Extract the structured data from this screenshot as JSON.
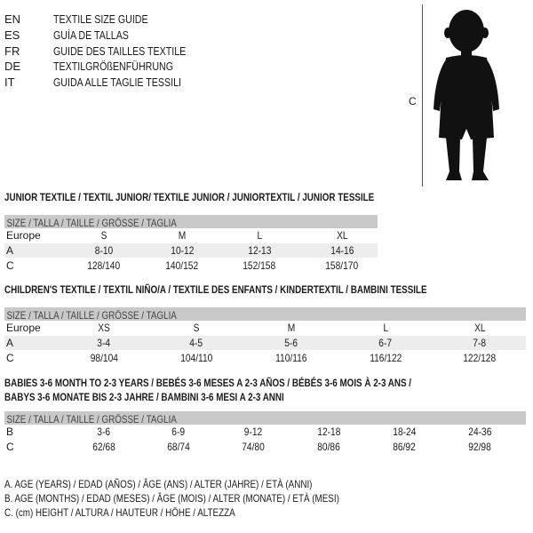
{
  "languages": [
    {
      "code": "EN",
      "text": "TEXTILE SIZE GUIDE"
    },
    {
      "code": "ES",
      "text": "GUÍA DE TALLAS"
    },
    {
      "code": "FR",
      "text": "GUIDE DES TAILLES TEXTILE"
    },
    {
      "code": "DE",
      "text": "TEXTILGRÖßENFÜHRUNG"
    },
    {
      "code": "IT",
      "text": "GUIDA ALLE TAGLIE TESSILI"
    }
  ],
  "figure": {
    "measure_label": "C",
    "icon": "child-silhouette"
  },
  "header_label": "SIZE / TALLA / TAILLE / GRÖSSE / TAGLIA",
  "junior": {
    "title": "JUNIOR TEXTILE / TEXTIL JUNIOR/ TEXTILE JUNIOR / JUNIORTEXTIL / JUNIOR TESSILE",
    "rows": [
      {
        "label": "Europe",
        "values": [
          "S",
          "M",
          "L",
          "XL"
        ]
      },
      {
        "label": "A",
        "values": [
          "8-10",
          "10-12",
          "12-13",
          "14-16"
        ]
      },
      {
        "label": "C",
        "values": [
          "128/140",
          "140/152",
          "152/158",
          "158/170"
        ]
      }
    ]
  },
  "children": {
    "title": "CHILDREN'S TEXTILE / TEXTIL NIÑO/A / TEXTILE DES ENFANTS / KINDERTEXTIL / BAMBINI TESSILE",
    "rows": [
      {
        "label": "Europe",
        "values": [
          "XS",
          "S",
          "M",
          "L",
          "XL"
        ]
      },
      {
        "label": "A",
        "values": [
          "3-4",
          "4-5",
          "5-6",
          "6-7",
          "7-8"
        ]
      },
      {
        "label": "C",
        "values": [
          "98/104",
          "104/110",
          "110/116",
          "116/122",
          "122/128"
        ]
      }
    ]
  },
  "babies": {
    "title_line1": "BABIES 3-6 MONTH TO 2-3 YEARS / BEBÉS 3-6 MESES A 2-3 AÑOS / BÉBÉS 3-6 MOIS À 2-3 ANS /",
    "title_line2": "BABYS 3-6 MONATE BIS 2-3 JAHRE / BAMBINI 3-6 MESI A 2-3 ANNI",
    "rows": [
      {
        "label": "B",
        "values": [
          "3-6",
          "6-9",
          "9-12",
          "12-18",
          "18-24",
          "24-36"
        ]
      },
      {
        "label": "C",
        "values": [
          "62/68",
          "68/74",
          "74/80",
          "80/86",
          "86/92",
          "92/98"
        ]
      }
    ]
  },
  "legend": [
    "A. AGE (YEARS) / EDAD (AÑOS) / ÂGE (ANS) / ALTER (JAHRE) / ETÀ (ANNI)",
    "B. AGE (MONTHS) / EDAD (MESES) / ÂGE (MOIS) / ALTER (MONATE) / ETÀ (MESI)",
    "C. (cm) HEIGHT / ALTURA / HAUTEUR / HÖHE / ALTEZZA"
  ]
}
